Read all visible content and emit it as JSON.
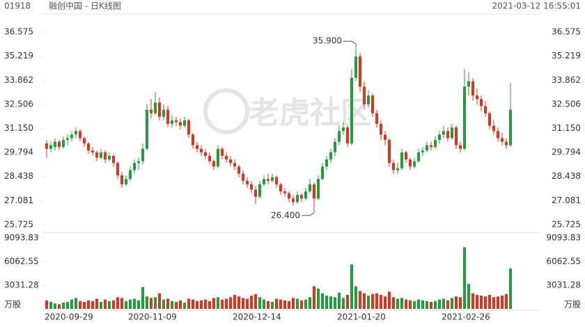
{
  "chart_data": {
    "type": "candlestick",
    "code": "01918",
    "title": "融创中国 - 日K线图",
    "timestamp": "2021-03-12 16:55:01",
    "watermark": "老虎社区",
    "up_color": "#1f9e3c",
    "down_color": "#e2321c",
    "ylim": [
      25.725,
      36.575
    ],
    "yticks": [
      {
        "value": 25.725,
        "label": "25.725"
      },
      {
        "value": 27.081,
        "label": "27.081"
      },
      {
        "value": 28.438,
        "label": "28.438"
      },
      {
        "value": 29.794,
        "label": "29.794"
      },
      {
        "value": 31.15,
        "label": "31.150"
      },
      {
        "value": 32.506,
        "label": "32.506"
      },
      {
        "value": 33.862,
        "label": "33.862"
      },
      {
        "value": 35.219,
        "label": "35.219"
      },
      {
        "value": 36.575,
        "label": "36.575"
      }
    ],
    "y2lim": [
      0,
      9093.83
    ],
    "y2ticks": [
      {
        "value": 0,
        "label": "万股"
      },
      3031.28,
      6062.55,
      9093.83
    ],
    "annotations": [
      {
        "label": "35.900",
        "value": 35.9
      },
      {
        "label": "26.400",
        "value": 26.4
      }
    ],
    "categories": [
      "2020-09-29",
      null,
      null,
      null,
      null,
      null,
      null,
      null,
      null,
      null,
      null,
      null,
      null,
      null,
      null,
      null,
      null,
      null,
      null,
      null,
      "2020-11-09",
      null,
      null,
      null,
      null,
      null,
      null,
      null,
      null,
      null,
      null,
      null,
      null,
      null,
      null,
      null,
      null,
      null,
      null,
      null,
      null,
      null,
      null,
      null,
      null,
      "2020-12-14",
      null,
      null,
      null,
      null,
      null,
      null,
      null,
      null,
      null,
      null,
      null,
      null,
      null,
      null,
      null,
      null,
      null,
      null,
      null,
      null,
      null,
      null,
      null,
      null,
      "2021-01-20",
      null,
      null,
      null,
      null,
      null,
      null,
      null,
      null,
      null,
      null,
      null,
      null,
      null,
      null,
      null,
      null,
      null,
      null,
      null,
      null,
      null,
      null,
      null,
      null,
      "2021-02-26",
      null,
      null,
      null,
      null,
      null,
      null,
      null,
      null,
      null,
      null,
      null,
      null,
      null,
      null,
      null,
      null
    ],
    "ohlc": [
      [
        30.3,
        30.5,
        29.5,
        30.0
      ],
      [
        30.0,
        30.4,
        29.8,
        30.2
      ],
      [
        30.1,
        30.6,
        29.9,
        30.4
      ],
      [
        30.4,
        30.5,
        29.9,
        30.1
      ],
      [
        30.1,
        30.7,
        30.0,
        30.5
      ],
      [
        30.5,
        30.8,
        30.2,
        30.6
      ],
      [
        30.6,
        31.0,
        30.4,
        30.8
      ],
      [
        30.8,
        31.2,
        30.6,
        31.0
      ],
      [
        31.0,
        31.1,
        30.4,
        30.6
      ],
      [
        30.6,
        30.7,
        30.1,
        30.3
      ],
      [
        30.3,
        30.4,
        29.7,
        29.9
      ],
      [
        29.9,
        30.1,
        29.6,
        29.8
      ],
      [
        29.8,
        29.9,
        29.3,
        29.5
      ],
      [
        29.5,
        30.0,
        29.4,
        29.8
      ],
      [
        29.8,
        29.9,
        29.2,
        29.4
      ],
      [
        29.4,
        29.8,
        29.3,
        29.6
      ],
      [
        29.6,
        29.7,
        29.0,
        29.2
      ],
      [
        29.2,
        29.3,
        28.3,
        28.5
      ],
      [
        28.5,
        28.7,
        27.8,
        28.0
      ],
      [
        28.0,
        28.5,
        27.9,
        28.3
      ],
      [
        28.3,
        29.0,
        28.2,
        28.8
      ],
      [
        28.8,
        29.4,
        28.6,
        29.2
      ],
      [
        29.2,
        29.5,
        28.8,
        29.3
      ],
      [
        29.3,
        30.3,
        29.1,
        30.0
      ],
      [
        30.0,
        32.5,
        29.9,
        32.2
      ],
      [
        32.2,
        32.8,
        31.7,
        32.0
      ],
      [
        32.0,
        33.2,
        31.9,
        32.6
      ],
      [
        32.6,
        32.9,
        31.6,
        31.8
      ],
      [
        31.8,
        32.5,
        31.6,
        32.2
      ],
      [
        32.2,
        32.4,
        31.2,
        31.4
      ],
      [
        31.4,
        31.9,
        31.2,
        31.6
      ],
      [
        31.6,
        31.8,
        31.3,
        31.5
      ],
      [
        31.5,
        31.7,
        31.1,
        31.3
      ],
      [
        31.3,
        31.8,
        31.2,
        31.6
      ],
      [
        31.6,
        31.7,
        30.6,
        30.8
      ],
      [
        30.8,
        30.9,
        30.0,
        30.2
      ],
      [
        30.2,
        30.4,
        29.8,
        30.0
      ],
      [
        30.0,
        30.2,
        29.6,
        29.8
      ],
      [
        29.8,
        30.0,
        29.4,
        29.6
      ],
      [
        29.6,
        29.8,
        29.1,
        29.3
      ],
      [
        29.3,
        29.4,
        28.8,
        29.0
      ],
      [
        29.0,
        30.2,
        28.9,
        30.0
      ],
      [
        30.0,
        30.1,
        29.4,
        29.6
      ],
      [
        29.6,
        29.8,
        29.2,
        29.4
      ],
      [
        29.4,
        29.6,
        29.0,
        29.2
      ],
      [
        29.2,
        29.4,
        28.8,
        29.0
      ],
      [
        29.0,
        29.1,
        28.4,
        28.6
      ],
      [
        28.6,
        28.8,
        28.0,
        28.2
      ],
      [
        28.2,
        28.4,
        27.8,
        28.0
      ],
      [
        28.0,
        28.2,
        27.5,
        27.7
      ],
      [
        27.7,
        27.9,
        26.9,
        27.3
      ],
      [
        27.3,
        28.2,
        27.2,
        28.0
      ],
      [
        28.0,
        28.5,
        27.9,
        28.3
      ],
      [
        28.3,
        28.6,
        28.0,
        28.2
      ],
      [
        28.2,
        28.6,
        28.1,
        28.4
      ],
      [
        28.4,
        28.5,
        27.8,
        28.0
      ],
      [
        28.0,
        28.1,
        27.4,
        27.6
      ],
      [
        27.6,
        27.8,
        27.3,
        27.5
      ],
      [
        27.5,
        27.6,
        27.0,
        27.2
      ],
      [
        27.2,
        27.4,
        26.8,
        27.0
      ],
      [
        27.0,
        27.6,
        26.9,
        27.4
      ],
      [
        27.4,
        27.5,
        27.0,
        27.2
      ],
      [
        27.2,
        27.8,
        27.1,
        27.6
      ],
      [
        27.6,
        28.3,
        27.5,
        28.0
      ],
      [
        28.0,
        28.1,
        26.4,
        27.2
      ],
      [
        27.2,
        28.5,
        27.1,
        28.3
      ],
      [
        28.3,
        29.2,
        28.2,
        29.0
      ],
      [
        29.0,
        29.6,
        28.8,
        29.4
      ],
      [
        29.4,
        30.0,
        29.2,
        29.8
      ],
      [
        29.8,
        30.6,
        29.6,
        30.4
      ],
      [
        30.4,
        31.3,
        30.2,
        31.0
      ],
      [
        31.0,
        31.5,
        30.8,
        31.2
      ],
      [
        31.2,
        31.3,
        30.1,
        30.3
      ],
      [
        30.3,
        34.5,
        30.2,
        34.0
      ],
      [
        34.0,
        35.9,
        33.8,
        35.2
      ],
      [
        35.2,
        35.4,
        33.2,
        33.5
      ],
      [
        33.5,
        33.8,
        32.2,
        32.5
      ],
      [
        32.5,
        33.3,
        32.3,
        33.0
      ],
      [
        33.0,
        33.1,
        31.8,
        32.0
      ],
      [
        32.0,
        32.2,
        31.2,
        31.4
      ],
      [
        31.4,
        31.6,
        30.5,
        30.8
      ],
      [
        30.8,
        31.0,
        30.2,
        30.5
      ],
      [
        30.5,
        30.6,
        29.0,
        29.2
      ],
      [
        29.2,
        29.4,
        28.6,
        28.8
      ],
      [
        28.8,
        29.2,
        28.6,
        28.9
      ],
      [
        28.9,
        30.0,
        28.8,
        29.8
      ],
      [
        29.8,
        29.9,
        29.2,
        29.4
      ],
      [
        29.4,
        29.5,
        28.8,
        29.0
      ],
      [
        29.0,
        29.5,
        28.9,
        29.3
      ],
      [
        29.3,
        30.0,
        29.2,
        29.8
      ],
      [
        29.8,
        30.1,
        29.6,
        29.9
      ],
      [
        29.9,
        30.4,
        29.8,
        30.2
      ],
      [
        30.2,
        30.4,
        29.9,
        30.1
      ],
      [
        30.1,
        30.7,
        30.0,
        30.5
      ],
      [
        30.5,
        31.0,
        30.3,
        30.8
      ],
      [
        30.8,
        31.3,
        30.6,
        31.0
      ],
      [
        31.0,
        31.2,
        30.4,
        30.6
      ],
      [
        30.6,
        31.4,
        30.5,
        31.2
      ],
      [
        31.2,
        31.3,
        30.0,
        30.2
      ],
      [
        30.2,
        30.4,
        29.8,
        30.0
      ],
      [
        30.0,
        34.5,
        29.9,
        33.5
      ],
      [
        33.5,
        34.3,
        33.0,
        33.8
      ],
      [
        33.8,
        34.0,
        32.7,
        33.0
      ],
      [
        33.0,
        33.4,
        32.5,
        32.8
      ],
      [
        32.8,
        33.0,
        32.1,
        32.4
      ],
      [
        32.4,
        32.7,
        31.8,
        32.0
      ],
      [
        32.0,
        32.1,
        31.1,
        31.3
      ],
      [
        31.3,
        31.6,
        30.8,
        31.0
      ],
      [
        31.0,
        31.2,
        30.4,
        30.6
      ],
      [
        30.6,
        30.9,
        30.2,
        30.4
      ],
      [
        30.4,
        30.6,
        30.0,
        30.2
      ],
      [
        30.2,
        33.7,
        30.1,
        32.2
      ]
    ],
    "volume": [
      1100,
      900,
      700,
      600,
      800,
      900,
      1200,
      1400,
      1000,
      900,
      1100,
      1000,
      1300,
      900,
      1200,
      1000,
      1100,
      1500,
      1400,
      1000,
      1200,
      1300,
      1100,
      2800,
      1600,
      1400,
      1500,
      2000,
      1200,
      1300,
      1000,
      900,
      1100,
      800,
      1300,
      1200,
      1000,
      1100,
      1200,
      1000,
      1400,
      1500,
      1200,
      1300,
      1500,
      1800,
      1600,
      1400,
      1300,
      1700,
      1900,
      1500,
      1200,
      1000,
      900,
      1300,
      1200,
      1100,
      1000,
      1400,
      1300,
      1100,
      1200,
      1500,
      2900,
      2600,
      2000,
      1700,
      1600,
      1500,
      2100,
      1400,
      1800,
      5700,
      2900,
      2300,
      2000,
      1700,
      1900,
      2000,
      1800,
      1600,
      2200,
      1500,
      1300,
      1400,
      1200,
      1100,
      1000,
      1200,
      1100,
      1000,
      900,
      1000,
      1200,
      1300,
      1100,
      1400,
      1600,
      1500,
      7900,
      3200,
      2000,
      1800,
      1700,
      1600,
      1800,
      1500,
      1600,
      1700,
      1900,
      5200
    ]
  }
}
